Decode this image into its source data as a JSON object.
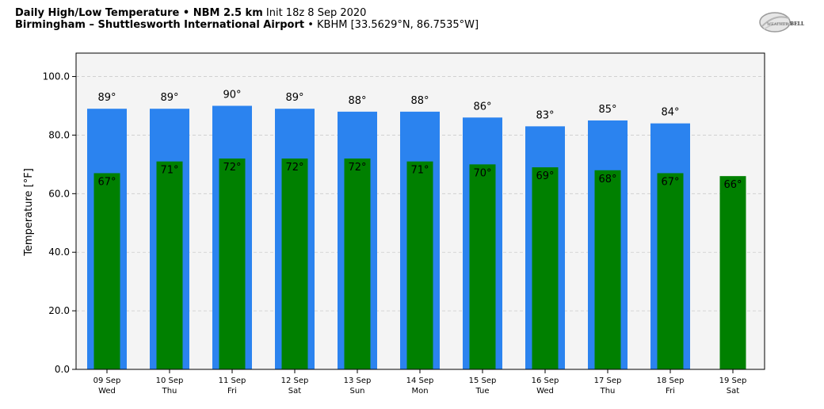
{
  "header": {
    "title_bold": "Daily High/Low Temperature • NBM 2.5 km",
    "title_rest": "Init 18z 8 Sep 2020",
    "location_bold": "Birmingham – Shuttlesworth International Airport",
    "location_rest": "• KBHM [33.5629°N, 86.7535°W]",
    "logo_text_a": "WEATHER",
    "logo_text_b": "BELL"
  },
  "colors": {
    "high": "#2b83ef",
    "low": "#008000",
    "plot_bg": "#f4f4f4",
    "grid": "#cccccc"
  },
  "chart_data": {
    "type": "bar",
    "ylabel": "Temperature [°F]",
    "ylim": [
      0,
      108
    ],
    "yticks": [
      0,
      20,
      40,
      60,
      80,
      100
    ],
    "ytick_labels": [
      "0.0",
      "20.0",
      "40.0",
      "60.0",
      "80.0",
      "100.0"
    ],
    "grid": true,
    "categories": [
      "09 Sep",
      "10 Sep",
      "11 Sep",
      "12 Sep",
      "13 Sep",
      "14 Sep",
      "15 Sep",
      "16 Sep",
      "17 Sep",
      "18 Sep",
      "19 Sep"
    ],
    "days": [
      "Wed",
      "Thu",
      "Fri",
      "Sat",
      "Sun",
      "Mon",
      "Tue",
      "Wed",
      "Thu",
      "Fri",
      "Sat"
    ],
    "series": [
      {
        "values": [
          89,
          89,
          90,
          89,
          88,
          88,
          86,
          83,
          85,
          84,
          null
        ],
        "labels": [
          "89°",
          "89°",
          "90°",
          "89°",
          "88°",
          "88°",
          "86°",
          "83°",
          "85°",
          "84°",
          ""
        ]
      },
      {
        "values": [
          67,
          71,
          72,
          72,
          72,
          71,
          70,
          69,
          68,
          67,
          66
        ],
        "labels": [
          "67°",
          "71°",
          "72°",
          "72°",
          "72°",
          "71°",
          "70°",
          "69°",
          "68°",
          "67°",
          "66°"
        ]
      }
    ]
  }
}
